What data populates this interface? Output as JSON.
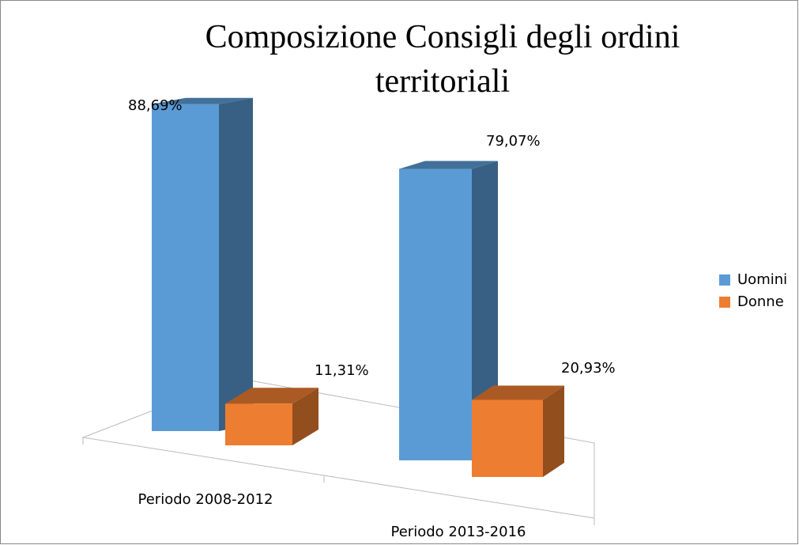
{
  "chart_data": {
    "type": "bar3d",
    "title": "Composizione Consigli degli ordini territoriali",
    "categories": [
      "Periodo 2008-2012",
      "Periodo 2013-2016"
    ],
    "series": [
      {
        "name": "Uomini",
        "color": "#5b9bd5",
        "values": [
          88.69,
          79.07
        ],
        "value_labels": [
          "88,69%",
          "79,07%"
        ]
      },
      {
        "name": "Donne",
        "color": "#ed7d31",
        "values": [
          11.31,
          20.93
        ],
        "value_labels": [
          "11,31%",
          "20,93%"
        ]
      }
    ],
    "legend": "right"
  }
}
